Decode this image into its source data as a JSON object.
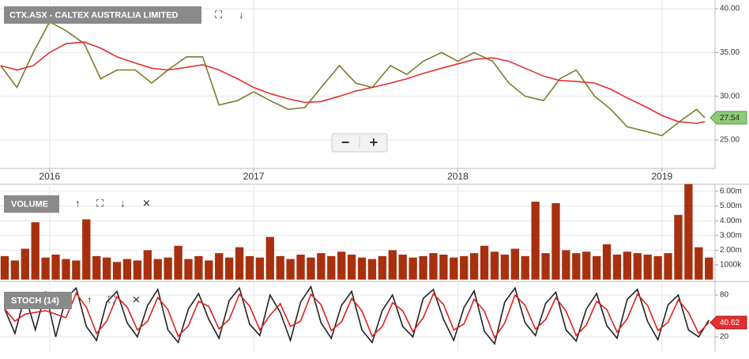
{
  "chart_data": [
    {
      "type": "line",
      "title": "CTX.ASX - CALTEX AUSTRALIA LIMITED",
      "x": [
        2015.76,
        2015.84,
        2015.92,
        2016.0,
        2016.08,
        2016.17,
        2016.25,
        2016.33,
        2016.42,
        2016.5,
        2016.58,
        2016.67,
        2016.75,
        2016.83,
        2016.92,
        2017.0,
        2017.08,
        2017.17,
        2017.25,
        2017.33,
        2017.42,
        2017.5,
        2017.58,
        2017.67,
        2017.75,
        2017.83,
        2017.92,
        2018.0,
        2018.08,
        2018.17,
        2018.25,
        2018.33,
        2018.42,
        2018.5,
        2018.58,
        2018.67,
        2018.75,
        2018.83,
        2018.92,
        2019.0,
        2019.08,
        2019.17,
        2019.21
      ],
      "series": [
        {
          "color": "#7d7a2a",
          "values": [
            33.5,
            31,
            35,
            38.5,
            37.5,
            36,
            32,
            33,
            33,
            31.5,
            33,
            34.5,
            34.5,
            29,
            29.5,
            30.5,
            29.5,
            28.5,
            28.7,
            31,
            33.5,
            31.5,
            31,
            33.5,
            32.5,
            34,
            35,
            34,
            35,
            34,
            31.5,
            30,
            29.5,
            32,
            33,
            30,
            28.5,
            26.5,
            26,
            25.5,
            27,
            28.5,
            27.54
          ]
        },
        {
          "color": "#e03030",
          "values": [
            33.5,
            33,
            33.5,
            35,
            36,
            36.2,
            35.5,
            34.5,
            33.8,
            33.2,
            33,
            33.3,
            33.6,
            33,
            32,
            31,
            30.3,
            29.7,
            29.3,
            29.4,
            30,
            30.6,
            31,
            31.5,
            32,
            32.6,
            33.2,
            33.7,
            34.2,
            34.4,
            34,
            33.2,
            32.3,
            31.8,
            31.7,
            31.5,
            30.8,
            29.8,
            28.8,
            27.8,
            27.1,
            26.9,
            27.1
          ]
        }
      ],
      "last_value": 27.54,
      "xlim": [
        2015.757,
        2019.26
      ],
      "xticks": [
        2016,
        2017,
        2018,
        2019
      ],
      "ylim": [
        21.75,
        41
      ],
      "yticks": [
        {
          "value": 25,
          "label": "25.00"
        },
        {
          "value": 30,
          "label": "30.00"
        },
        {
          "value": 35,
          "label": "35.00"
        },
        {
          "value": 40,
          "label": "40.00"
        }
      ],
      "grid": true
    },
    {
      "type": "bar",
      "title": "VOLUME",
      "x": [
        2015.78,
        2015.83,
        2015.88,
        2015.93,
        2015.98,
        2016.03,
        2016.08,
        2016.13,
        2016.18,
        2016.23,
        2016.28,
        2016.33,
        2016.38,
        2016.43,
        2016.48,
        2016.53,
        2016.58,
        2016.63,
        2016.68,
        2016.73,
        2016.78,
        2016.83,
        2016.88,
        2016.93,
        2016.98,
        2017.03,
        2017.08,
        2017.13,
        2017.18,
        2017.23,
        2017.28,
        2017.33,
        2017.38,
        2017.43,
        2017.48,
        2017.53,
        2017.58,
        2017.63,
        2017.68,
        2017.73,
        2017.78,
        2017.83,
        2017.88,
        2017.93,
        2017.98,
        2018.03,
        2018.08,
        2018.13,
        2018.18,
        2018.23,
        2018.28,
        2018.33,
        2018.38,
        2018.43,
        2018.48,
        2018.53,
        2018.58,
        2018.63,
        2018.68,
        2018.73,
        2018.78,
        2018.83,
        2018.88,
        2018.93,
        2018.98,
        2019.03,
        2019.08,
        2019.13,
        2019.18,
        2019.23
      ],
      "values": [
        1.6,
        1.3,
        2.1,
        3.9,
        1.5,
        1.7,
        1.4,
        1.3,
        4.1,
        1.6,
        1.5,
        1.2,
        1.4,
        1.3,
        2.0,
        1.4,
        1.5,
        2.3,
        1.4,
        1.6,
        1.3,
        1.8,
        1.5,
        2.2,
        1.6,
        1.5,
        2.9,
        1.6,
        1.4,
        1.7,
        1.5,
        1.8,
        1.6,
        1.9,
        1.7,
        1.5,
        1.4,
        1.6,
        2.0,
        1.7,
        1.5,
        1.6,
        1.8,
        1.7,
        1.5,
        1.6,
        1.8,
        2.3,
        1.9,
        1.7,
        2.1,
        1.6,
        5.3,
        1.8,
        5.2,
        2.0,
        1.8,
        1.9,
        1.6,
        2.4,
        1.7,
        1.9,
        1.8,
        1.7,
        1.6,
        1.8,
        4.4,
        6.5,
        2.2,
        1.5
      ],
      "color": "#a8300f",
      "xlim": [
        2015.757,
        2019.26
      ],
      "ylim": [
        0,
        6.5
      ],
      "yticks": [
        {
          "value": 1,
          "label": "1000k"
        },
        {
          "value": 2,
          "label": "2.00m"
        },
        {
          "value": 3,
          "label": "3.00m"
        },
        {
          "value": 4,
          "label": "4.00m"
        },
        {
          "value": 5,
          "label": "5.00m"
        },
        {
          "value": 6,
          "label": "6.00m"
        }
      ],
      "grid": true
    },
    {
      "type": "line",
      "title": "STOCH (14)",
      "x": [
        2015.78,
        2015.83,
        2015.88,
        2015.93,
        2015.98,
        2016.03,
        2016.08,
        2016.13,
        2016.18,
        2016.23,
        2016.28,
        2016.33,
        2016.38,
        2016.43,
        2016.48,
        2016.53,
        2016.58,
        2016.63,
        2016.68,
        2016.73,
        2016.78,
        2016.83,
        2016.88,
        2016.93,
        2016.98,
        2017.03,
        2017.08,
        2017.13,
        2017.18,
        2017.23,
        2017.28,
        2017.33,
        2017.38,
        2017.43,
        2017.48,
        2017.53,
        2017.58,
        2017.63,
        2017.68,
        2017.73,
        2017.78,
        2017.83,
        2017.88,
        2017.93,
        2017.98,
        2018.03,
        2018.08,
        2018.13,
        2018.18,
        2018.23,
        2018.28,
        2018.33,
        2018.38,
        2018.43,
        2018.48,
        2018.53,
        2018.58,
        2018.63,
        2018.68,
        2018.73,
        2018.78,
        2018.83,
        2018.88,
        2018.93,
        2018.98,
        2019.03,
        2019.08,
        2019.13,
        2019.18,
        2019.23
      ],
      "series": [
        {
          "color": "#222222",
          "values": [
            60,
            25,
            80,
            30,
            85,
            20,
            75,
            90,
            35,
            15,
            70,
            85,
            40,
            20,
            65,
            88,
            30,
            12,
            60,
            82,
            45,
            18,
            72,
            90,
            38,
            22,
            80,
            55,
            15,
            70,
            92,
            40,
            18,
            65,
            85,
            30,
            12,
            58,
            80,
            35,
            20,
            75,
            88,
            45,
            15,
            62,
            86,
            28,
            10,
            70,
            90,
            40,
            22,
            68,
            84,
            30,
            14,
            60,
            82,
            36,
            18,
            74,
            88,
            42,
            16,
            66,
            80,
            30,
            20,
            44
          ]
        },
        {
          "color": "#e02020",
          "values": [
            60,
            42.5,
            52.5,
            55,
            57.5,
            52.5,
            47.5,
            82.5,
            62.5,
            25,
            42.5,
            77.5,
            62.5,
            30,
            42.5,
            76.5,
            59,
            21,
            36,
            71,
            63.5,
            31.5,
            45,
            81,
            64,
            30,
            51,
            67.5,
            35,
            42.5,
            81,
            66,
            29,
            41.5,
            75,
            57.5,
            21,
            35,
            69,
            57.5,
            27.5,
            47.5,
            81.5,
            66.5,
            30,
            38.5,
            74,
            57,
            19,
            40,
            80,
            65,
            31,
            45,
            76,
            57,
            22,
            37,
            71,
            59,
            27,
            46,
            81,
            65,
            29,
            41,
            73,
            55,
            25,
            40.62
          ]
        }
      ],
      "last_value": 40.62,
      "xlim": [
        2015.757,
        2019.26
      ],
      "ylim": [
        0,
        100
      ],
      "yticks": [
        20,
        80
      ],
      "grid": true
    }
  ]
}
